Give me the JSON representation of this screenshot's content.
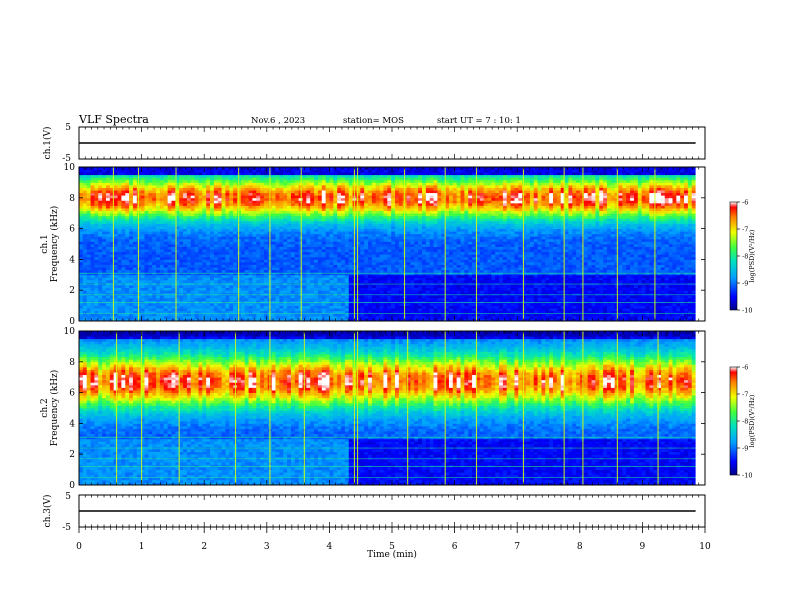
{
  "header": {
    "title": "VLF Spectra",
    "date": "Nov.6 , 2023",
    "station": "station= MOS",
    "start": "start UT = 7 : 10: 1"
  },
  "chart_data": [
    {
      "type": "line",
      "name": "ch1-waveform",
      "ylabel": "ch.1(V)",
      "ylim": [
        -5,
        5
      ],
      "yticks": [
        "5",
        "-5"
      ],
      "x": [
        0,
        9.85
      ],
      "values": [
        0,
        0
      ]
    },
    {
      "type": "heatmap",
      "name": "ch1-spectrogram",
      "ylabel": "ch.1\nFrequency (kHz)",
      "ylabel_line1": "ch.1",
      "ylabel_line2": "Frequency (kHz)",
      "ylim": [
        0,
        10
      ],
      "yticks": [
        "0",
        "2",
        "4",
        "6",
        "8",
        "10"
      ],
      "xlim": [
        0,
        10
      ],
      "data_extent_min": 9.85,
      "peak_band_khz": [
        7.0,
        9.0
      ],
      "colorbar": {
        "label": "log(PSD)(V²/Hz)",
        "ticks": [
          "-6",
          "-7",
          "-8",
          "-9",
          "-10"
        ],
        "range": [
          -10,
          -6
        ]
      },
      "bright_vertical_events_min": [
        0.55,
        0.95,
        1.55,
        2.55,
        3.05,
        3.55,
        4.4,
        4.45,
        5.2,
        5.85,
        6.35,
        7.1,
        7.75,
        8.05,
        8.6,
        9.2
      ]
    },
    {
      "type": "heatmap",
      "name": "ch2-spectrogram",
      "ylabel": "ch.2\nFrequency (kHz)",
      "ylabel_line1": "ch.2",
      "ylabel_line2": "Frequency (kHz)",
      "ylim": [
        0,
        10
      ],
      "yticks": [
        "0",
        "2",
        "4",
        "6",
        "8",
        "10"
      ],
      "xlim": [
        0,
        10
      ],
      "data_extent_min": 9.85,
      "peak_band_khz": [
        5.5,
        8.0
      ],
      "colorbar": {
        "label": "log(PSD)(V²/Hz)",
        "ticks": [
          "-6",
          "-7",
          "-8",
          "-9",
          "-10"
        ],
        "range": [
          -10,
          -6
        ]
      },
      "bright_vertical_events_min": [
        0.6,
        1.0,
        1.6,
        2.5,
        3.05,
        3.6,
        4.4,
        4.45,
        5.25,
        5.85,
        6.35,
        7.1,
        7.75,
        8.05,
        8.6,
        9.25
      ]
    },
    {
      "type": "line",
      "name": "ch3-waveform",
      "ylabel": "ch.3(V)",
      "ylim": [
        -5,
        5
      ],
      "yticks": [
        "5",
        "-5"
      ],
      "x": [
        0,
        9.85
      ],
      "values": [
        0,
        0
      ]
    }
  ],
  "xaxis": {
    "label": "Time (min)",
    "ticks": [
      "0",
      "1",
      "2",
      "3",
      "4",
      "5",
      "6",
      "7",
      "8",
      "9",
      "10"
    ]
  }
}
